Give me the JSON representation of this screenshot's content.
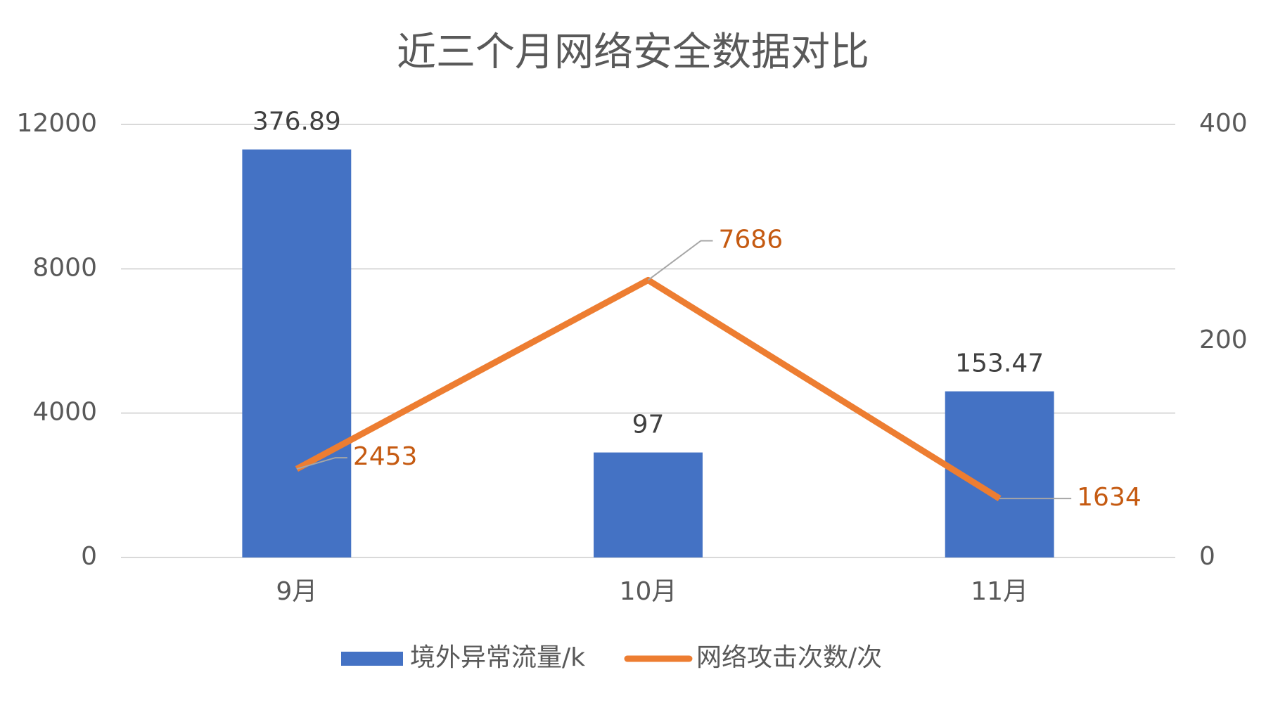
{
  "chart_data": {
    "type": "bar-line",
    "title": "近三个月网络安全数据对比",
    "categories": [
      "9月",
      "10月",
      "11月"
    ],
    "series": [
      {
        "name": "境外异常流量/k",
        "type": "bar",
        "axis": "y2",
        "color": "#4472c4",
        "values": [
          376.89,
          97,
          153.47
        ]
      },
      {
        "name": "网络攻击次数/次",
        "type": "line",
        "axis": "y",
        "color": "#ed7d31",
        "label_color": "#c55a11",
        "values": [
          2453,
          7686,
          1634
        ]
      }
    ],
    "ylim": [
      0,
      12000
    ],
    "yticks": [
      0,
      4000,
      8000,
      12000
    ],
    "y2lim": [
      0,
      400
    ],
    "y2ticks": [
      0,
      200,
      400
    ],
    "grid": true,
    "legend": "bottom"
  }
}
